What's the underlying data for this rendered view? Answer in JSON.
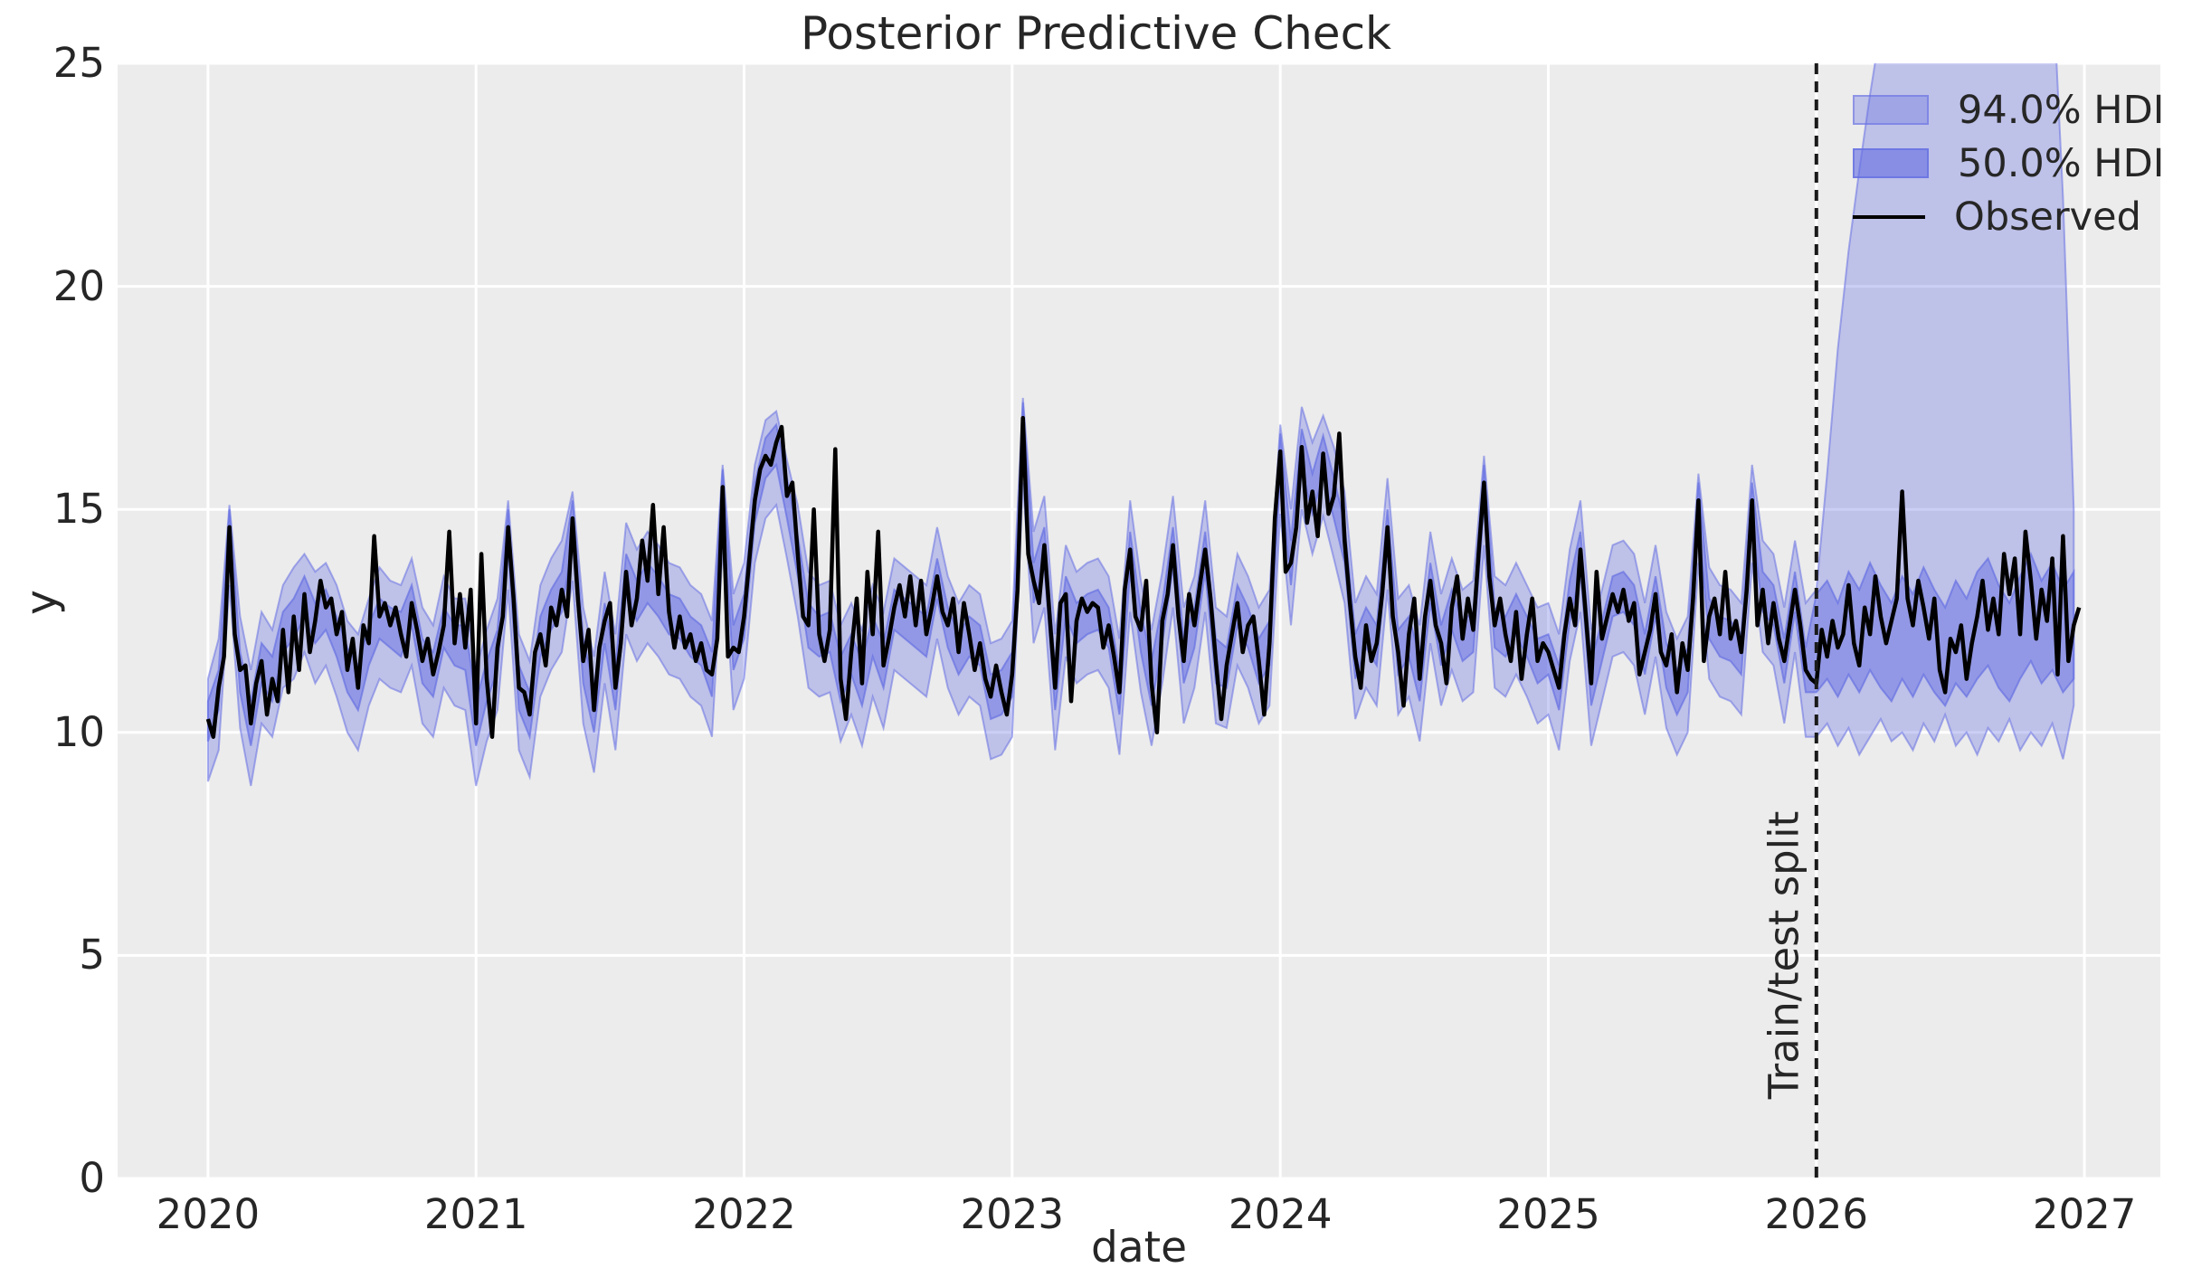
{
  "chart_data": {
    "type": "line",
    "title": "Posterior Predictive Check",
    "xlabel": "date",
    "ylabel": "y",
    "xlim": [
      2019.663,
      2027.283
    ],
    "ylim": [
      0,
      25
    ],
    "x_ticks": [
      2020,
      2021,
      2022,
      2023,
      2024,
      2025,
      2026,
      2027
    ],
    "y_ticks": [
      0,
      5,
      10,
      15,
      20,
      25
    ],
    "grid": "white major gridlines on gray background",
    "legend_position": "upper right",
    "legend": [
      {
        "label": "94.0% HDI"
      },
      {
        "label": "50.0% HDI"
      },
      {
        "label": "Observed"
      }
    ],
    "split_line": {
      "x": 2026.0,
      "label": "Train/test split",
      "style": "black dashed vertical"
    },
    "colors": {
      "band_base": "#6670e2",
      "band94_alpha": 0.34,
      "band50_alpha": 0.5,
      "observed": "#000000",
      "plot_background": "#ececec",
      "grid": "#ffffff",
      "text": "#262626"
    },
    "series": {
      "observed": {
        "name": "Observed",
        "x0": 2020.0,
        "dx": 0.02,
        "values": [
          10.3,
          9.9,
          11.0,
          11.7,
          14.6,
          12.2,
          11.4,
          11.5,
          10.2,
          11.1,
          11.6,
          10.4,
          11.2,
          10.7,
          12.3,
          10.9,
          12.6,
          11.4,
          13.1,
          11.8,
          12.5,
          13.4,
          12.8,
          13.0,
          12.2,
          12.7,
          11.4,
          12.1,
          11.0,
          12.4,
          12.0,
          14.4,
          12.6,
          12.9,
          12.4,
          12.8,
          12.2,
          11.7,
          12.9,
          12.3,
          11.6,
          12.1,
          11.3,
          11.8,
          12.4,
          14.5,
          12.0,
          13.1,
          11.9,
          13.2,
          10.2,
          14.0,
          11.2,
          9.9,
          11.9,
          12.6,
          14.6,
          13.0,
          11.0,
          10.9,
          10.4,
          11.8,
          12.2,
          11.5,
          12.8,
          12.4,
          13.2,
          12.6,
          14.8,
          13.0,
          11.6,
          12.3,
          10.5,
          11.9,
          12.5,
          12.9,
          11.0,
          12.0,
          13.6,
          12.4,
          13.0,
          14.3,
          13.4,
          15.1,
          13.1,
          14.6,
          12.7,
          11.9,
          12.6,
          11.9,
          12.2,
          11.6,
          12.0,
          11.4,
          11.3,
          12.1,
          15.5,
          11.7,
          11.9,
          11.8,
          12.6,
          13.9,
          15.2,
          15.9,
          16.2,
          16.0,
          16.5,
          16.85,
          15.3,
          15.6,
          14.0,
          12.6,
          12.4,
          15.0,
          12.2,
          11.6,
          12.3,
          16.35,
          11.2,
          10.3,
          11.8,
          13.0,
          11.1,
          13.6,
          12.2,
          14.5,
          11.5,
          12.1,
          12.8,
          13.3,
          12.6,
          13.5,
          12.4,
          13.4,
          12.2,
          12.8,
          13.5,
          12.7,
          12.4,
          13.0,
          11.8,
          12.9,
          12.2,
          11.4,
          12.0,
          11.2,
          10.8,
          11.5,
          10.9,
          10.4,
          11.3,
          13.2,
          17.05,
          14.0,
          13.4,
          12.9,
          14.2,
          12.6,
          11.0,
          12.9,
          13.1,
          10.7,
          12.5,
          13.0,
          12.7,
          12.9,
          12.8,
          11.9,
          12.4,
          11.7,
          10.9,
          13.2,
          14.1,
          12.6,
          12.3,
          13.4,
          11.1,
          10.0,
          12.5,
          13.1,
          14.2,
          12.6,
          11.6,
          13.1,
          12.4,
          13.3,
          14.1,
          13.0,
          11.6,
          10.3,
          11.5,
          12.2,
          12.9,
          11.8,
          12.4,
          12.6,
          11.6,
          10.4,
          12.0,
          14.8,
          16.3,
          13.6,
          13.8,
          14.6,
          16.4,
          14.7,
          15.4,
          14.4,
          16.25,
          14.9,
          15.3,
          16.7,
          14.3,
          12.9,
          11.7,
          11.0,
          12.4,
          11.6,
          12.0,
          13.1,
          14.6,
          12.6,
          11.8,
          10.6,
          12.2,
          13.0,
          11.2,
          12.6,
          13.4,
          12.4,
          12.0,
          11.1,
          12.8,
          13.5,
          12.1,
          13.0,
          12.3,
          14.0,
          15.6,
          13.5,
          12.4,
          13.0,
          12.2,
          11.6,
          12.7,
          11.2,
          12.2,
          13.0,
          11.6,
          12.0,
          11.8,
          11.4,
          11.0,
          12.2,
          13.0,
          12.4,
          14.1,
          12.6,
          11.1,
          13.6,
          12.1,
          12.6,
          13.1,
          12.7,
          13.2,
          12.5,
          12.9,
          11.3,
          11.8,
          12.3,
          13.1,
          11.8,
          11.5,
          12.2,
          10.9,
          12.0,
          11.4,
          13.0,
          15.2,
          11.6,
          12.6,
          13.0,
          12.2,
          13.6,
          12.1,
          12.5,
          11.8,
          13.2,
          15.2,
          12.4,
          13.2,
          12.0,
          12.9,
          12.1,
          11.6,
          12.4,
          13.2,
          12.4,
          11.4,
          11.2,
          11.1,
          12.3,
          11.7,
          12.5,
          11.9,
          12.2,
          13.3,
          12.0,
          11.5,
          12.8,
          12.2,
          13.5,
          12.6,
          12.0,
          12.5,
          13.0,
          15.4,
          13.0,
          12.4,
          13.4,
          12.8,
          12.1,
          13.0,
          11.4,
          10.9,
          12.1,
          11.8,
          12.4,
          11.2,
          12.0,
          12.6,
          13.4,
          12.3,
          13.0,
          12.2,
          14.0,
          13.1,
          13.9,
          12.2,
          14.5,
          13.4,
          12.1,
          13.2,
          12.5,
          13.9,
          11.3,
          14.4,
          11.6,
          12.4,
          12.8
        ]
      },
      "hdi94": {
        "name": "94.0% HDI",
        "x0": 2020.0,
        "dx": 0.04,
        "upper": [
          11.2,
          12.1,
          15.1,
          12.6,
          11.4,
          12.7,
          12.3,
          13.3,
          13.7,
          14.0,
          13.6,
          13.8,
          13.3,
          12.5,
          12.2,
          13.0,
          13.7,
          13.4,
          13.3,
          13.9,
          12.8,
          12.4,
          13.5,
          13.0,
          13.0,
          11.4,
          12.3,
          13.0,
          15.2,
          12.2,
          11.6,
          13.3,
          13.9,
          14.3,
          15.4,
          12.8,
          11.7,
          13.6,
          12.2,
          14.7,
          14.1,
          14.5,
          14.2,
          13.8,
          13.7,
          13.3,
          13.1,
          12.5,
          16.0,
          13.1,
          13.8,
          16.0,
          17.0,
          17.2,
          16.1,
          15.1,
          13.6,
          13.3,
          13.4,
          12.4,
          12.9,
          12.3,
          13.3,
          12.7,
          13.9,
          13.7,
          13.5,
          13.3,
          14.6,
          13.5,
          12.9,
          13.3,
          13.1,
          12.0,
          12.1,
          12.5,
          17.5,
          14.5,
          15.3,
          12.2,
          14.2,
          13.6,
          13.8,
          13.9,
          13.5,
          12.1,
          15.2,
          13.4,
          12.3,
          13.6,
          15.3,
          12.8,
          13.5,
          15.2,
          12.8,
          12.6,
          14.0,
          13.5,
          12.8,
          13.2,
          16.9,
          15.0,
          17.3,
          16.5,
          17.1,
          16.4,
          15.4,
          12.9,
          13.5,
          13.1,
          15.7,
          13.0,
          13.3,
          12.4,
          14.5,
          13.1,
          13.9,
          13.2,
          13.4,
          16.2,
          13.5,
          13.3,
          13.8,
          13.3,
          12.8,
          12.9,
          12.2,
          14.1,
          15.2,
          12.3,
          13.2,
          14.2,
          14.3,
          14.0,
          12.9,
          14.2,
          12.7,
          12.1,
          12.6,
          15.8,
          13.7,
          13.3,
          13.2,
          12.9,
          16.0,
          14.3,
          14.0,
          12.8,
          14.3,
          12.9,
          13.2,
          15.8,
          18.6,
          20.8,
          22.6,
          24.3,
          25.8,
          27.0,
          27.5,
          27.2,
          27.8,
          27.4,
          27.9,
          27.6,
          27.2,
          27.7,
          27.3,
          27.8,
          27.5,
          27.0,
          27.6,
          27.2,
          27.0,
          22.0,
          15.0
        ],
        "lower": [
          8.9,
          9.6,
          13.3,
          10.1,
          8.8,
          10.2,
          9.9,
          11.0,
          11.2,
          11.8,
          11.1,
          11.5,
          10.8,
          10.0,
          9.6,
          10.6,
          11.2,
          11.0,
          10.9,
          11.5,
          10.2,
          9.9,
          11.0,
          10.6,
          10.5,
          8.8,
          9.8,
          10.5,
          13.2,
          9.6,
          9.0,
          10.8,
          11.4,
          11.8,
          13.4,
          10.2,
          9.1,
          11.1,
          9.6,
          12.2,
          11.6,
          12.0,
          11.7,
          11.3,
          11.2,
          10.8,
          10.6,
          9.9,
          14.1,
          10.5,
          11.2,
          13.8,
          14.8,
          15.1,
          13.9,
          12.6,
          11.0,
          10.8,
          10.9,
          9.8,
          10.4,
          9.7,
          10.8,
          10.1,
          11.4,
          11.2,
          11.0,
          10.8,
          12.1,
          11.0,
          10.4,
          10.8,
          10.6,
          9.4,
          9.5,
          9.9,
          15.6,
          12.0,
          12.8,
          9.6,
          11.7,
          11.1,
          11.3,
          11.4,
          11.0,
          9.5,
          12.7,
          10.9,
          9.7,
          11.1,
          12.8,
          10.2,
          11.0,
          12.7,
          10.2,
          10.1,
          11.5,
          11.0,
          10.2,
          10.6,
          14.9,
          12.4,
          15.0,
          14.0,
          14.85,
          13.9,
          12.9,
          10.3,
          11.0,
          10.6,
          13.2,
          10.4,
          10.8,
          9.8,
          12.0,
          10.6,
          11.4,
          10.7,
          10.9,
          14.2,
          11.0,
          10.8,
          11.3,
          10.8,
          10.2,
          10.4,
          9.6,
          11.6,
          12.7,
          9.7,
          10.7,
          11.7,
          11.8,
          11.5,
          10.4,
          11.7,
          10.1,
          9.5,
          10.0,
          13.8,
          11.2,
          10.8,
          10.7,
          10.4,
          13.8,
          11.8,
          11.5,
          10.2,
          11.8,
          9.9,
          9.9,
          10.2,
          9.7,
          10.1,
          9.5,
          9.9,
          10.3,
          9.8,
          10.0,
          9.6,
          10.2,
          9.8,
          10.4,
          9.7,
          10.0,
          9.5,
          10.1,
          9.8,
          10.3,
          9.6,
          10.0,
          9.7,
          10.2,
          9.4,
          10.6
        ]
      },
      "hdi50": {
        "name": "50.0% HDI",
        "x0": 2020.0,
        "dx": 0.04,
        "upper": [
          10.7,
          11.4,
          15.0,
          11.8,
          10.7,
          12.0,
          11.7,
          12.7,
          13.0,
          13.5,
          12.9,
          13.2,
          12.6,
          11.9,
          11.5,
          12.4,
          13.0,
          12.8,
          12.7,
          13.3,
          12.1,
          11.8,
          12.8,
          12.4,
          12.4,
          10.7,
          11.6,
          12.3,
          15.0,
          11.5,
          10.9,
          12.6,
          13.2,
          13.6,
          15.2,
          12.1,
          11.0,
          12.9,
          11.5,
          14.0,
          13.4,
          13.8,
          13.5,
          13.1,
          13.0,
          12.6,
          12.4,
          11.8,
          15.9,
          12.4,
          13.1,
          15.6,
          16.6,
          16.9,
          15.7,
          14.4,
          12.9,
          12.6,
          12.7,
          11.7,
          12.2,
          11.6,
          12.6,
          12.0,
          13.2,
          13.0,
          12.8,
          12.6,
          13.9,
          12.8,
          12.2,
          12.6,
          12.4,
          11.3,
          11.4,
          11.8,
          17.4,
          13.8,
          14.6,
          11.5,
          13.5,
          12.9,
          13.1,
          13.2,
          12.8,
          11.4,
          14.5,
          12.7,
          11.6,
          12.9,
          14.6,
          12.1,
          12.8,
          14.5,
          12.1,
          11.9,
          13.3,
          12.8,
          12.1,
          12.5,
          16.7,
          14.3,
          16.8,
          15.8,
          16.65,
          15.7,
          14.7,
          12.2,
          12.8,
          12.4,
          15.0,
          12.3,
          12.6,
          11.7,
          13.8,
          12.4,
          13.2,
          12.5,
          12.7,
          16.0,
          12.8,
          12.6,
          13.1,
          12.6,
          12.1,
          12.2,
          11.5,
          13.4,
          14.5,
          11.6,
          12.5,
          13.5,
          13.6,
          13.3,
          12.2,
          13.5,
          12.0,
          11.4,
          11.9,
          15.6,
          13.0,
          12.6,
          12.5,
          12.2,
          15.6,
          13.6,
          13.3,
          12.1,
          13.6,
          11.9,
          13.1,
          13.4,
          12.9,
          13.6,
          13.2,
          13.8,
          13.3,
          12.9,
          13.5,
          13.1,
          13.7,
          13.2,
          12.8,
          13.4,
          13.0,
          13.6,
          13.9,
          13.3,
          12.9,
          13.5,
          14.0,
          13.4,
          13.8,
          13.2,
          13.6
        ],
        "lower": [
          9.8,
          10.5,
          14.1,
          10.9,
          9.7,
          11.1,
          10.7,
          11.8,
          12.1,
          12.6,
          12.0,
          12.3,
          11.7,
          10.9,
          10.5,
          11.5,
          12.1,
          11.9,
          11.7,
          12.4,
          11.1,
          10.8,
          11.9,
          11.5,
          11.4,
          9.7,
          10.7,
          11.4,
          14.1,
          10.5,
          9.9,
          11.7,
          12.3,
          12.7,
          14.3,
          11.1,
          10.0,
          12.0,
          10.5,
          13.1,
          12.5,
          12.9,
          12.6,
          12.2,
          12.1,
          11.7,
          11.5,
          10.8,
          15.0,
          11.4,
          12.1,
          14.7,
          15.7,
          16.0,
          14.8,
          13.5,
          11.9,
          11.7,
          11.8,
          10.7,
          11.3,
          10.6,
          11.7,
          11.0,
          12.3,
          12.1,
          11.9,
          11.7,
          13.0,
          11.9,
          11.3,
          11.7,
          11.5,
          10.3,
          10.4,
          10.8,
          16.5,
          12.9,
          13.7,
          10.5,
          12.6,
          12.0,
          12.2,
          12.3,
          11.9,
          10.4,
          13.6,
          11.8,
          10.6,
          12.0,
          13.7,
          11.1,
          11.9,
          13.6,
          11.1,
          11.0,
          12.4,
          11.9,
          11.1,
          11.5,
          15.8,
          13.3,
          15.9,
          14.9,
          15.75,
          14.8,
          13.8,
          11.2,
          11.9,
          11.5,
          14.1,
          11.3,
          11.7,
          10.7,
          12.9,
          11.5,
          12.3,
          11.6,
          11.8,
          15.1,
          11.9,
          11.7,
          12.2,
          11.7,
          11.1,
          11.3,
          10.5,
          12.5,
          13.6,
          10.6,
          11.6,
          12.6,
          12.7,
          12.4,
          11.3,
          12.6,
          11.0,
          10.4,
          10.9,
          14.7,
          12.1,
          11.7,
          11.6,
          11.3,
          14.7,
          12.7,
          12.4,
          11.1,
          12.7,
          10.9,
          10.9,
          11.2,
          10.8,
          11.3,
          10.9,
          11.4,
          11.0,
          10.7,
          11.2,
          10.8,
          11.3,
          10.9,
          10.6,
          11.1,
          10.8,
          11.2,
          11.5,
          11.0,
          10.7,
          11.2,
          11.6,
          11.1,
          11.4,
          10.9,
          11.2
        ]
      }
    }
  }
}
